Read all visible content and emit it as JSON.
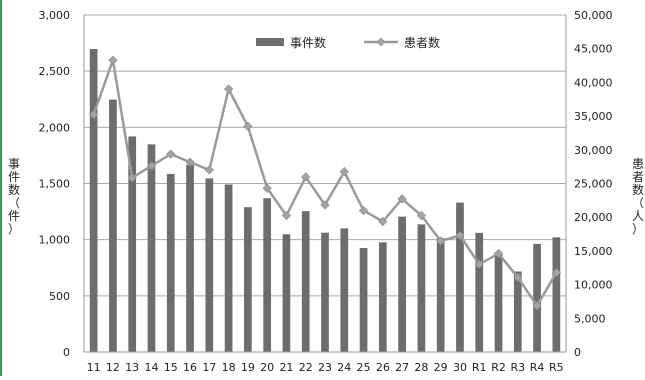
{
  "chart_data": {
    "type": "bar",
    "categories": [
      "11",
      "12",
      "13",
      "14",
      "15",
      "16",
      "17",
      "18",
      "19",
      "20",
      "21",
      "22",
      "23",
      "24",
      "25",
      "26",
      "27",
      "28",
      "29",
      "30",
      "R1",
      "R2",
      "R3",
      "R4",
      "R5"
    ],
    "series": [
      {
        "name": "事件数",
        "type": "bar",
        "axis": "left",
        "values": [
          2697,
          2247,
          1919,
          1848,
          1585,
          1666,
          1545,
          1491,
          1289,
          1369,
          1048,
          1254,
          1062,
          1100,
          926,
          976,
          1205,
          1136,
          1014,
          1330,
          1061,
          887,
          717,
          962,
          1021
        ]
      },
      {
        "name": "患者数",
        "type": "line",
        "axis": "right",
        "values": [
          35214,
          43307,
          25862,
          27629,
          29355,
          28175,
          27019,
          39026,
          33477,
          24303,
          20249,
          25972,
          21816,
          26757,
          20976,
          19355,
          22718,
          20252,
          16464,
          17282,
          13018,
          14603,
          11080,
          6856,
          11803
        ]
      }
    ],
    "y_left": {
      "title": "事件数（件）",
      "min": 0,
      "max": 3000,
      "ticks": [
        "0",
        "500",
        "1,000",
        "1,500",
        "2,000",
        "2,500",
        "3,000"
      ]
    },
    "y_right": {
      "title": "患者数（人）",
      "min": 0,
      "max": 50000,
      "ticks": [
        "0",
        "5,000",
        "10,000",
        "15,000",
        "20,000",
        "25,000",
        "30,000",
        "35,000",
        "40,000",
        "45,000",
        "50,000"
      ]
    },
    "grid": true,
    "legend_position": "top-center",
    "colors": {
      "bar": "#6d6d6d",
      "line": "#9a9a9a",
      "marker": "#a3a3a3",
      "grid": "#a9a9a9"
    }
  }
}
